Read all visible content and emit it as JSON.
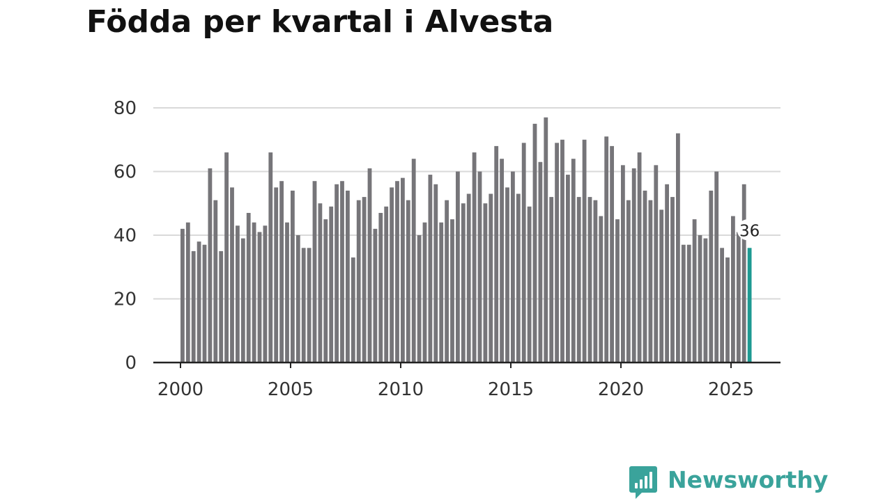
{
  "chart_data": {
    "type": "bar",
    "title": "Födda per kvartal i Alvesta",
    "xlabel": "",
    "ylabel": "",
    "ylim": [
      0,
      80
    ],
    "yticks": [
      0,
      20,
      40,
      60,
      80
    ],
    "xticks": [
      "2000",
      "2005",
      "2010",
      "2015",
      "2020",
      "2025"
    ],
    "xticks_values": [
      2000,
      2005,
      2010,
      2015,
      2020,
      2025
    ],
    "start_year": 2000,
    "periods_per_year": 4,
    "grid": true,
    "legend": false,
    "bar_color": "#767579",
    "highlight_color": "#1d9a92",
    "values": [
      42,
      44,
      35,
      38,
      37,
      61,
      51,
      35,
      66,
      55,
      43,
      39,
      47,
      44,
      41,
      43,
      66,
      55,
      57,
      44,
      54,
      40,
      36,
      36,
      57,
      50,
      45,
      49,
      56,
      57,
      54,
      33,
      51,
      52,
      61,
      42,
      47,
      49,
      55,
      57,
      58,
      51,
      64,
      40,
      44,
      59,
      56,
      44,
      51,
      45,
      60,
      50,
      53,
      66,
      60,
      50,
      53,
      68,
      64,
      55,
      60,
      53,
      69,
      49,
      75,
      63,
      77,
      52,
      69,
      70,
      59,
      64,
      52,
      70,
      52,
      51,
      46,
      71,
      68,
      45,
      62,
      51,
      61,
      66,
      54,
      51,
      62,
      48,
      56,
      52,
      72,
      37,
      37,
      45,
      40,
      39,
      54,
      60,
      36,
      33,
      46,
      41,
      56,
      36
    ],
    "highlight_label": "36"
  },
  "branding": {
    "name": "Newsworthy",
    "logo_icon": "newsworthy-logo-icon",
    "color": "#3aa39b"
  }
}
